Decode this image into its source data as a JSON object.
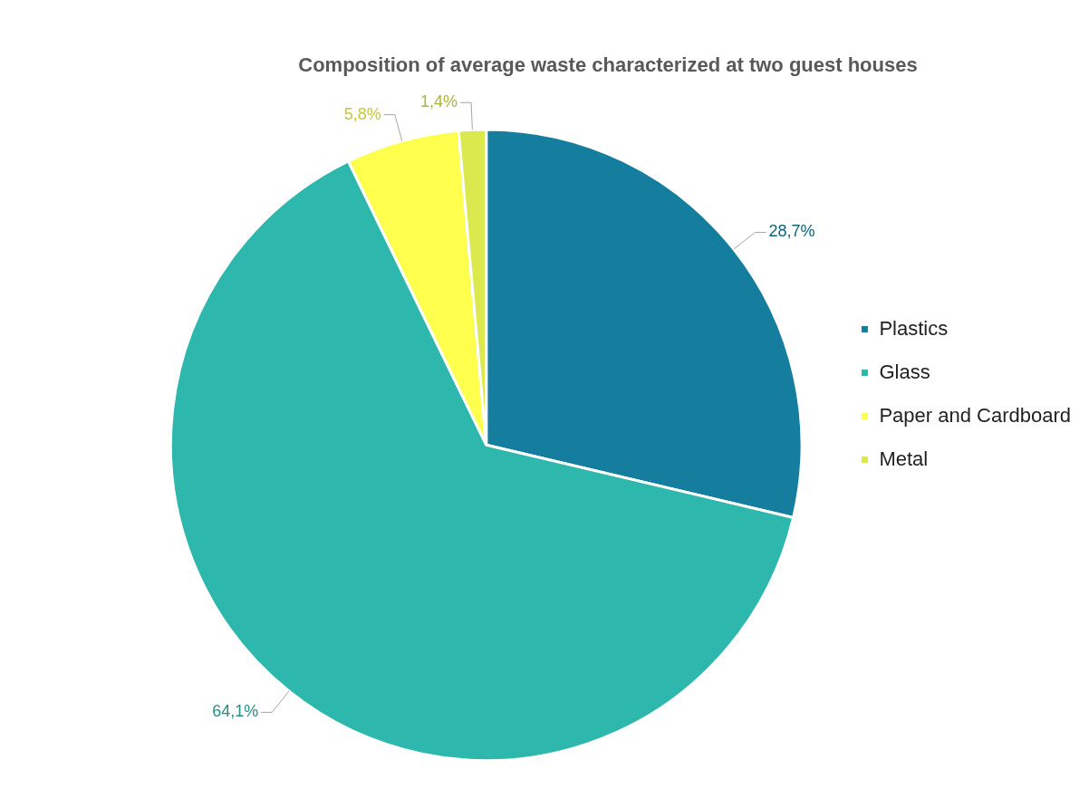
{
  "chart_data": {
    "type": "pie",
    "title": "Composition of average waste characterized at two guest houses",
    "categories": [
      "Plastics",
      "Glass",
      "Paper and Cardboard",
      "Metal"
    ],
    "values": [
      28.7,
      64.1,
      5.8,
      1.4
    ],
    "colors": [
      "#157e9e",
      "#2db7ad",
      "#ffff4d",
      "#dbe94f"
    ],
    "value_labels": [
      "28,7%",
      "64,1%",
      "5,8%",
      "1,4%"
    ],
    "legend": "right"
  }
}
